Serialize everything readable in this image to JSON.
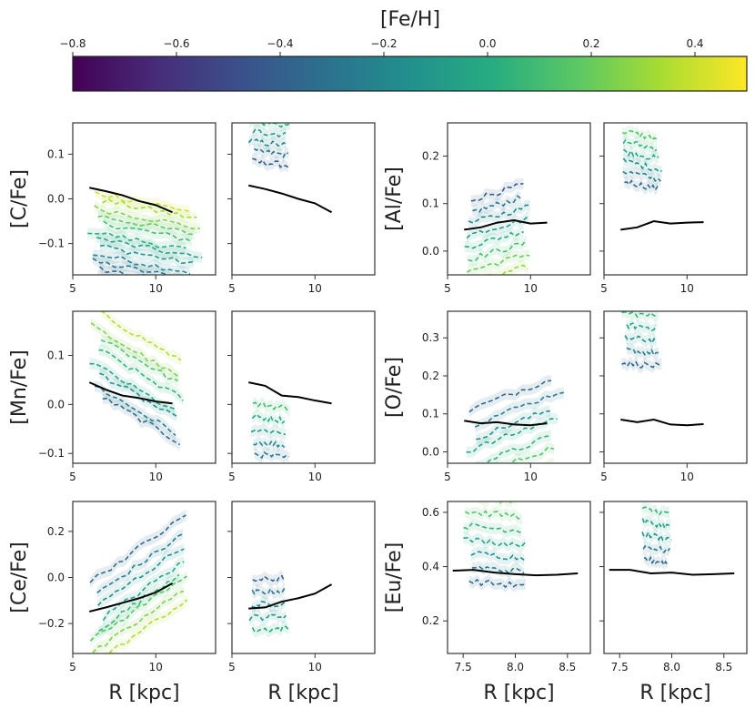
{
  "chart_data": {
    "type": "line",
    "figure_title": "",
    "colorbar": {
      "label": "[Fe/H]",
      "range": [
        -0.8,
        0.5
      ],
      "ticks": [
        -0.8,
        -0.6,
        -0.4,
        -0.2,
        0.0,
        0.2,
        0.4
      ],
      "tick_labels": [
        "−0.8",
        "−0.6",
        "−0.4",
        "−0.2",
        "0.0",
        "0.2",
        "0.4"
      ],
      "colormap": [
        "#440154",
        "#472c7a",
        "#3b518b",
        "#2c718e",
        "#21908d",
        "#27ad81",
        "#5cc863",
        "#aadc32",
        "#fde725"
      ]
    },
    "reference_color": "#000000",
    "panels": [
      {
        "id": "cfe-left",
        "ylabel": "[C/Fe]",
        "xlabel": "",
        "xlim": [
          5,
          13.6
        ],
        "ylim": [
          -0.17,
          0.17
        ],
        "xticks": [
          5,
          10
        ],
        "xtick_labels": [
          "5",
          "10"
        ],
        "yticks": [
          -0.1,
          0.0,
          0.1
        ],
        "ytick_labels": [
          "−0.1",
          "0.0",
          "0.1"
        ],
        "reference": {
          "x": [
            6,
            7,
            8,
            9,
            10,
            11
          ],
          "y": [
            0.025,
            0.017,
            0.008,
            -0.005,
            -0.014,
            -0.03
          ]
        },
        "series_feh": [
          -0.45,
          -0.35,
          -0.28,
          -0.2,
          -0.12,
          -0.05,
          0.02,
          0.1,
          0.18,
          0.25,
          0.32,
          0.4
        ],
        "series": [
          {
            "x": [
              5.8,
              7.0,
              8.5,
              10.0,
              11.5,
              12.8
            ],
            "y": [
              -0.08,
              -0.09,
              -0.1,
              -0.11,
              -0.12,
              -0.13
            ]
          }
        ]
      },
      {
        "id": "cfe-right",
        "ylabel": "",
        "xlabel": "",
        "xlim": [
          5,
          13.6
        ],
        "ylim": [
          -0.17,
          0.17
        ],
        "xticks": [
          5,
          10
        ],
        "xtick_labels": [
          "5",
          "10"
        ],
        "yticks": [
          -0.1,
          0.0,
          0.1
        ],
        "ytick_labels": [
          "",
          "",
          ""
        ],
        "reference": {
          "x": [
            6,
            7,
            8,
            9,
            10,
            11
          ],
          "y": [
            0.03,
            0.022,
            0.012,
            0.0,
            -0.01,
            -0.03
          ]
        },
        "series_feh": [
          -0.4,
          -0.3,
          -0.2,
          -0.1,
          0.0,
          0.1
        ],
        "series": [
          {
            "x": [
              6,
              8.5
            ],
            "y": [
              0.14,
              0.13
            ]
          }
        ]
      },
      {
        "id": "alfe-left",
        "ylabel": "[Al/Fe]",
        "xlabel": "",
        "xlim": [
          5,
          13.6
        ],
        "ylim": [
          -0.05,
          0.27
        ],
        "xticks": [
          5,
          10
        ],
        "xtick_labels": [
          "5",
          "10"
        ],
        "yticks": [
          0.0,
          0.1,
          0.2
        ],
        "ytick_labels": [
          "0.0",
          "0.1",
          "0.2"
        ],
        "reference": {
          "x": [
            6,
            7,
            8,
            9,
            10,
            11
          ],
          "y": [
            0.045,
            0.05,
            0.06,
            0.065,
            0.058,
            0.06
          ]
        },
        "series_feh": [
          -0.4,
          -0.3,
          -0.2,
          -0.1,
          0.0,
          0.1,
          0.2,
          0.3
        ],
        "series": [
          {
            "x": [
              6,
              7,
              8,
              9,
              10
            ],
            "y": [
              0.02,
              0.03,
              0.04,
              0.05,
              0.06
            ]
          }
        ]
      },
      {
        "id": "alfe-right",
        "ylabel": "",
        "xlabel": "",
        "xlim": [
          5,
          13.6
        ],
        "ylim": [
          -0.05,
          0.27
        ],
        "xticks": [
          5,
          10
        ],
        "xtick_labels": [
          "5",
          "10"
        ],
        "yticks": [
          0.0,
          0.1,
          0.2
        ],
        "ytick_labels": [
          "",
          "",
          ""
        ],
        "reference": {
          "x": [
            6,
            7,
            8,
            9,
            10,
            11
          ],
          "y": [
            0.045,
            0.05,
            0.063,
            0.058,
            0.06,
            0.061
          ]
        },
        "series_feh": [
          -0.35,
          -0.25,
          -0.15,
          -0.05,
          0.05,
          0.15
        ],
        "series": [
          {
            "x": [
              6,
              8.5
            ],
            "y": [
              0.2,
              0.18
            ]
          }
        ]
      },
      {
        "id": "mnfe-left",
        "ylabel": "[Mn/Fe]",
        "xlabel": "",
        "xlim": [
          5,
          13.6
        ],
        "ylim": [
          -0.12,
          0.19
        ],
        "xticks": [
          5,
          10
        ],
        "xtick_labels": [
          "5",
          "10"
        ],
        "yticks": [
          -0.1,
          0.0,
          0.1
        ],
        "ytick_labels": [
          "−0.1",
          "0.0",
          "0.1"
        ],
        "reference": {
          "x": [
            6,
            7,
            8,
            9,
            10,
            11
          ],
          "y": [
            0.045,
            0.03,
            0.018,
            0.013,
            0.006,
            0.002
          ]
        },
        "series_feh": [
          -0.35,
          -0.25,
          -0.15,
          -0.05,
          0.05,
          0.15,
          0.25,
          0.35
        ],
        "series": [
          {
            "x": [
              6,
              8,
              10,
              12
            ],
            "y": [
              0.1,
              0.06,
              0.02,
              -0.02
            ]
          }
        ]
      },
      {
        "id": "mnfe-right",
        "ylabel": "",
        "xlabel": "",
        "xlim": [
          5,
          13.6
        ],
        "ylim": [
          -0.12,
          0.19
        ],
        "xticks": [
          5,
          10
        ],
        "xtick_labels": [
          "5",
          "10"
        ],
        "yticks": [
          -0.1,
          0.0,
          0.1
        ],
        "ytick_labels": [
          "",
          "",
          ""
        ],
        "reference": {
          "x": [
            6,
            7,
            8,
            9,
            10,
            11
          ],
          "y": [
            0.045,
            0.038,
            0.018,
            0.015,
            0.008,
            0.002
          ]
        },
        "series_feh": [
          -0.3,
          -0.2,
          -0.1,
          0.0,
          0.1
        ],
        "series": [
          {
            "x": [
              6,
              8.5
            ],
            "y": [
              -0.05,
              -0.06
            ]
          }
        ]
      },
      {
        "id": "ofe-left",
        "ylabel": "[O/Fe]",
        "xlabel": "",
        "xlim": [
          5,
          13.6
        ],
        "ylim": [
          -0.03,
          0.37
        ],
        "xticks": [
          5,
          10
        ],
        "xtick_labels": [
          "5",
          "10"
        ],
        "yticks": [
          0.0,
          0.1,
          0.2,
          0.3
        ],
        "ytick_labels": [
          "0.0",
          "0.1",
          "0.2",
          "0.3"
        ],
        "reference": {
          "x": [
            6,
            7,
            8,
            9,
            10,
            11
          ],
          "y": [
            0.082,
            0.075,
            0.078,
            0.072,
            0.07,
            0.075
          ]
        },
        "series_feh": [
          -0.35,
          -0.25,
          -0.15,
          -0.05,
          0.05,
          0.15,
          0.25
        ],
        "series": [
          {
            "x": [
              6,
              8,
              10,
              12
            ],
            "y": [
              0.0,
              0.02,
              0.05,
              0.1
            ]
          }
        ]
      },
      {
        "id": "ofe-right",
        "ylabel": "",
        "xlabel": "",
        "xlim": [
          5,
          13.6
        ],
        "ylim": [
          -0.03,
          0.37
        ],
        "xticks": [
          5,
          10
        ],
        "xtick_labels": [
          "5",
          "10"
        ],
        "yticks": [
          0.0,
          0.1,
          0.2,
          0.3
        ],
        "ytick_labels": [
          "",
          "",
          "",
          ""
        ],
        "reference": {
          "x": [
            6,
            7,
            8,
            9,
            10,
            11
          ],
          "y": [
            0.085,
            0.078,
            0.085,
            0.072,
            0.07,
            0.073
          ]
        },
        "series_feh": [
          -0.35,
          -0.25,
          -0.15,
          -0.05,
          0.05
        ],
        "series": [
          {
            "x": [
              6,
              8.5
            ],
            "y": [
              0.3,
              0.29
            ]
          }
        ]
      },
      {
        "id": "cefe-left",
        "ylabel": "[Ce/Fe]",
        "xlabel": "R [kpc]",
        "xlim": [
          5,
          13.6
        ],
        "ylim": [
          -0.33,
          0.33
        ],
        "xticks": [
          5,
          10
        ],
        "xtick_labels": [
          "5",
          "10"
        ],
        "yticks": [
          -0.2,
          0.0,
          0.2
        ],
        "ytick_labels": [
          "−0.2",
          "0.0",
          "0.2"
        ],
        "reference": {
          "x": [
            6,
            7,
            8,
            9,
            10,
            11
          ],
          "y": [
            -0.148,
            -0.13,
            -0.11,
            -0.09,
            -0.065,
            -0.025
          ]
        },
        "series_feh": [
          -0.35,
          -0.25,
          -0.15,
          -0.05,
          0.05,
          0.15,
          0.25,
          0.35
        ],
        "series": [
          {
            "x": [
              6,
              8,
              10,
              12
            ],
            "y": [
              -0.2,
              -0.1,
              0.0,
              0.1
            ]
          }
        ]
      },
      {
        "id": "cefe-right",
        "ylabel": "",
        "xlabel": "R [kpc]",
        "xlim": [
          5,
          13.6
        ],
        "ylim": [
          -0.33,
          0.33
        ],
        "xticks": [
          5,
          10
        ],
        "xtick_labels": [
          "5",
          "10"
        ],
        "yticks": [
          -0.2,
          0.0,
          0.2
        ],
        "ytick_labels": [
          "",
          "",
          ""
        ],
        "reference": {
          "x": [
            6,
            7,
            8,
            9,
            10,
            11
          ],
          "y": [
            -0.135,
            -0.13,
            -0.105,
            -0.09,
            -0.07,
            -0.03
          ]
        },
        "series_feh": [
          -0.4,
          -0.3,
          -0.2,
          -0.1,
          0.0
        ],
        "series": [
          {
            "x": [
              6,
              8.5
            ],
            "y": [
              -0.12,
              -0.11
            ]
          }
        ]
      },
      {
        "id": "eufe-left",
        "ylabel": "[Eu/Fe]",
        "xlabel": "R [kpc]",
        "xlim": [
          7.35,
          8.72
        ],
        "ylim": [
          0.08,
          0.64
        ],
        "xticks": [
          7.5,
          8.0,
          8.5
        ],
        "xtick_labels": [
          "7.5",
          "8.0",
          "8.5"
        ],
        "yticks": [
          0.2,
          0.4,
          0.6
        ],
        "ytick_labels": [
          "0.2",
          "0.4",
          "0.6"
        ],
        "reference": {
          "x": [
            7.4,
            7.6,
            7.8,
            8.0,
            8.2,
            8.4,
            8.6
          ],
          "y": [
            0.385,
            0.388,
            0.378,
            0.372,
            0.368,
            0.37,
            0.375
          ]
        },
        "series_feh": [
          -0.35,
          -0.25,
          -0.15,
          -0.05,
          0.05,
          0.15,
          0.25
        ],
        "series": [
          {
            "x": [
              7.5,
              8.1
            ],
            "y": [
              0.5,
              0.48
            ]
          }
        ]
      },
      {
        "id": "eufe-right",
        "ylabel": "",
        "xlabel": "R [kpc]",
        "xlim": [
          7.35,
          8.72
        ],
        "ylim": [
          0.08,
          0.64
        ],
        "xticks": [
          7.5,
          8.0,
          8.5
        ],
        "xtick_labels": [
          "7.5",
          "8.0",
          "8.5"
        ],
        "yticks": [
          0.2,
          0.4,
          0.6
        ],
        "ytick_labels": [
          "",
          "",
          ""
        ],
        "reference": {
          "x": [
            7.4,
            7.6,
            7.8,
            8.0,
            8.2,
            8.4,
            8.6
          ],
          "y": [
            0.388,
            0.388,
            0.375,
            0.378,
            0.37,
            0.372,
            0.375
          ]
        },
        "series_feh": [
          -0.35,
          -0.25,
          -0.15,
          -0.05,
          0.05
        ],
        "series": [
          {
            "x": [
              7.7,
              8.0
            ],
            "y": [
              0.52,
              0.5
            ]
          }
        ]
      }
    ]
  }
}
